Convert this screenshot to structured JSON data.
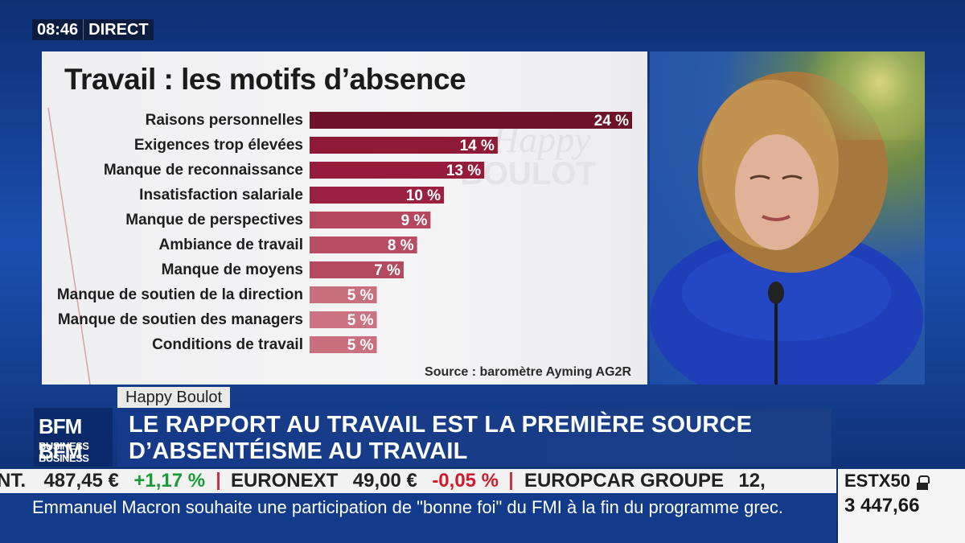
{
  "live_badge": {
    "time": "08:46",
    "label": "DIRECT"
  },
  "chart_data": {
    "type": "bar",
    "orientation": "horizontal",
    "title": "Travail : les motifs d’absence",
    "categories": [
      "Raisons personnelles",
      "Exigences trop élevées",
      "Manque de reconnaissance",
      "Insatisfaction salariale",
      "Manque de perspectives",
      "Ambiance de travail",
      "Manque de moyens",
      "Manque de soutien de la direction",
      "Manque de soutien des managers",
      "Conditions de travail"
    ],
    "values": [
      24,
      14,
      13,
      10,
      9,
      8,
      7,
      5,
      5,
      5
    ],
    "value_labels": [
      "24 %",
      "14 %",
      "13 %",
      "10 %",
      "9 %",
      "8 %",
      "7 %",
      "5 %",
      "5 %",
      "5 %"
    ],
    "bar_colors": [
      "#6e1428",
      "#8f1a36",
      "#951c3a",
      "#9a2140",
      "#b4485f",
      "#b84c63",
      "#b44a60",
      "#c9707f",
      "#cb7382",
      "#c96f7e"
    ],
    "xlim": [
      0,
      24
    ],
    "source": "Source : baromètre Ayming AG2R"
  },
  "lower_third": {
    "program": "Happy Boulot",
    "headline_line1": "LE RAPPORT AU TRAVAIL EST LA PREMIÈRE SOURCE",
    "headline_line2": "D’ABSENTÉISME AU TRAVAIL",
    "logo_line1": "BFM BFM",
    "logo_line2": "BUSINESS BUSINESS"
  },
  "stock_ticker": [
    {
      "name": "NT.",
      "value": "487,45 €",
      "change": "+1,17 %",
      "direction": "up"
    },
    {
      "name": "EURONEXT",
      "value": "49,00 €",
      "change": "-0,05 %",
      "direction": "down"
    },
    {
      "name": "EUROPCAR GROUPE",
      "value": "12,",
      "change": "",
      "direction": "none"
    }
  ],
  "index_box": {
    "name": "ESTX50",
    "value": "3 447,66"
  },
  "news_ticker": "Emmanuel Macron souhaite une participation de \"bonne foi\" du FMI à la fin du programme grec."
}
